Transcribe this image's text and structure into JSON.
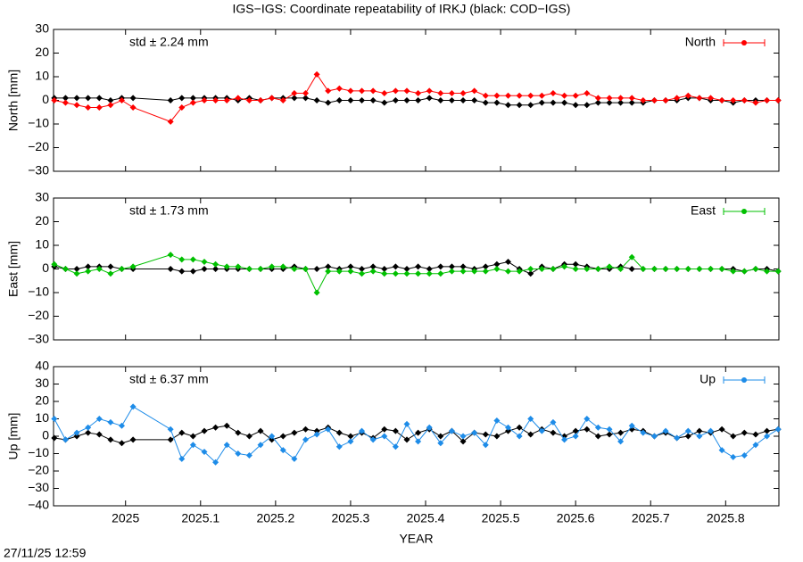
{
  "title": "IGS−IGS: Coordinate repeatability of IRKJ (black: COD−IGS)",
  "footer": "27/11/25 12:59",
  "chart_data": [
    {
      "type": "line",
      "ylabel": "North [mm]",
      "annotation": "std ± 2.24 mm",
      "annotation_color": "#ff0000",
      "xlim": [
        2024.904,
        2025.871
      ],
      "xticks": [
        2025,
        2025.1,
        2025.2,
        2025.3,
        2025.4,
        2025.5,
        2025.6,
        2025.7,
        2025.8
      ],
      "ylim": [
        -30,
        30
      ],
      "yticks": [
        30,
        20,
        10,
        0,
        {
          "value": -10,
          "label": "−10"
        },
        {
          "value": -20,
          "label": "−20"
        },
        {
          "value": -30,
          "label": "−30"
        }
      ],
      "x": [
        2024.905,
        2024.92,
        2024.935,
        2024.95,
        2024.965,
        2024.98,
        2024.995,
        2025.01,
        2025.06,
        2025.075,
        2025.09,
        2025.105,
        2025.12,
        2025.135,
        2025.15,
        2025.165,
        2025.18,
        2025.195,
        2025.21,
        2025.225,
        2025.24,
        2025.255,
        2025.27,
        2025.285,
        2025.3,
        2025.315,
        2025.33,
        2025.345,
        2025.36,
        2025.375,
        2025.39,
        2025.405,
        2025.42,
        2025.435,
        2025.45,
        2025.465,
        2025.48,
        2025.495,
        2025.51,
        2025.525,
        2025.54,
        2025.555,
        2025.57,
        2025.585,
        2025.6,
        2025.615,
        2025.63,
        2025.645,
        2025.66,
        2025.675,
        2025.69,
        2025.705,
        2025.72,
        2025.735,
        2025.75,
        2025.765,
        2025.78,
        2025.795,
        2025.81,
        2025.825,
        2025.84,
        2025.855,
        2025.87
      ],
      "series": [
        {
          "color": "#000000",
          "values": [
            1,
            1,
            1,
            1,
            1,
            0,
            1,
            1,
            0,
            1,
            1,
            1,
            1,
            1,
            0,
            1,
            0,
            1,
            1,
            1,
            1,
            0,
            -1,
            0,
            0,
            0,
            0,
            -1,
            0,
            0,
            0,
            1,
            0,
            0,
            0,
            0,
            -1,
            -1,
            -2,
            -2,
            -2,
            -1,
            -1,
            -1,
            -2,
            -2,
            -1,
            -1,
            -1,
            -1,
            -1,
            0,
            0,
            0,
            1,
            1,
            0,
            0,
            -1,
            0,
            0,
            0,
            0
          ]
        },
        {
          "name": "North",
          "color": "#ff0000",
          "values": [
            0,
            -1,
            -2,
            -3,
            -3,
            -2,
            0,
            -3,
            -9,
            -3,
            -1,
            0,
            0,
            0,
            1,
            0,
            0,
            1,
            0,
            3,
            3,
            11,
            4,
            5,
            4,
            4,
            4,
            3,
            4,
            4,
            3,
            4,
            3,
            3,
            3,
            4,
            2,
            2,
            2,
            2,
            2,
            2,
            3,
            2,
            2,
            3,
            1,
            1,
            1,
            1,
            0,
            0,
            0,
            1,
            2,
            1,
            1,
            0,
            0,
            0,
            -1,
            0,
            0
          ]
        }
      ]
    },
    {
      "type": "line",
      "ylabel": "East [mm]",
      "annotation": "std ± 1.73 mm",
      "annotation_color": "#00c000",
      "xlim": [
        2024.904,
        2025.871
      ],
      "xticks": [
        2025,
        2025.1,
        2025.2,
        2025.3,
        2025.4,
        2025.5,
        2025.6,
        2025.7,
        2025.8
      ],
      "ylim": [
        -30,
        30
      ],
      "yticks": [
        30,
        20,
        10,
        0,
        {
          "value": -10,
          "label": "−10"
        },
        {
          "value": -20,
          "label": "−20"
        },
        {
          "value": -30,
          "label": "−30"
        }
      ],
      "x": [
        2024.905,
        2024.92,
        2024.935,
        2024.95,
        2024.965,
        2024.98,
        2024.995,
        2025.01,
        2025.06,
        2025.075,
        2025.09,
        2025.105,
        2025.12,
        2025.135,
        2025.15,
        2025.165,
        2025.18,
        2025.195,
        2025.21,
        2025.225,
        2025.24,
        2025.255,
        2025.27,
        2025.285,
        2025.3,
        2025.315,
        2025.33,
        2025.345,
        2025.36,
        2025.375,
        2025.39,
        2025.405,
        2025.42,
        2025.435,
        2025.45,
        2025.465,
        2025.48,
        2025.495,
        2025.51,
        2025.525,
        2025.54,
        2025.555,
        2025.57,
        2025.585,
        2025.6,
        2025.615,
        2025.63,
        2025.645,
        2025.66,
        2025.675,
        2025.69,
        2025.705,
        2025.72,
        2025.735,
        2025.75,
        2025.765,
        2025.78,
        2025.795,
        2025.81,
        2025.825,
        2025.84,
        2025.855,
        2025.87
      ],
      "series": [
        {
          "color": "#000000",
          "values": [
            1,
            0,
            0,
            1,
            1,
            1,
            0,
            0,
            0,
            -1,
            -1,
            0,
            0,
            0,
            0,
            0,
            0,
            0,
            0,
            1,
            0,
            0,
            1,
            0,
            1,
            0,
            1,
            0,
            1,
            0,
            1,
            0,
            1,
            1,
            1,
            0,
            1,
            2,
            3,
            0,
            -2,
            1,
            0,
            2,
            2,
            1,
            0,
            0,
            1,
            0,
            0,
            0,
            0,
            0,
            0,
            0,
            0,
            0,
            0,
            -1,
            0,
            0,
            -1
          ]
        },
        {
          "name": "East",
          "color": "#00c000",
          "values": [
            2,
            0,
            -2,
            -1,
            0,
            -2,
            0,
            1,
            6,
            4,
            4,
            3,
            2,
            1,
            1,
            0,
            0,
            1,
            1,
            0,
            0,
            -10,
            -1,
            -1,
            -1,
            -2,
            -1,
            -2,
            -2,
            -2,
            -2,
            -2,
            -2,
            -1,
            -1,
            -1,
            -1,
            0,
            -1,
            -1,
            0,
            0,
            0,
            1,
            0,
            0,
            0,
            1,
            0,
            5,
            0,
            0,
            0,
            0,
            0,
            0,
            0,
            0,
            -1,
            -1,
            0,
            -1,
            -1
          ]
        }
      ]
    },
    {
      "type": "line",
      "ylabel": "Up [mm]",
      "annotation": "std ± 6.37 mm",
      "annotation_color": "#1e8ce8",
      "xlabel": "YEAR",
      "xlim": [
        2024.904,
        2025.871
      ],
      "xticks": [
        2025,
        2025.1,
        2025.2,
        2025.3,
        2025.4,
        2025.5,
        2025.6,
        2025.7,
        2025.8
      ],
      "ylim": [
        -40,
        40
      ],
      "yticks": [
        40,
        30,
        20,
        10,
        0,
        {
          "value": -10,
          "label": "−10"
        },
        {
          "value": -20,
          "label": "−20"
        },
        {
          "value": -30,
          "label": "−30"
        },
        {
          "value": -40,
          "label": "−40"
        }
      ],
      "x": [
        2024.905,
        2024.92,
        2024.935,
        2024.95,
        2024.965,
        2024.98,
        2024.995,
        2025.01,
        2025.06,
        2025.075,
        2025.09,
        2025.105,
        2025.12,
        2025.135,
        2025.15,
        2025.165,
        2025.18,
        2025.195,
        2025.21,
        2025.225,
        2025.24,
        2025.255,
        2025.27,
        2025.285,
        2025.3,
        2025.315,
        2025.33,
        2025.345,
        2025.36,
        2025.375,
        2025.39,
        2025.405,
        2025.42,
        2025.435,
        2025.45,
        2025.465,
        2025.48,
        2025.495,
        2025.51,
        2025.525,
        2025.54,
        2025.555,
        2025.57,
        2025.585,
        2025.6,
        2025.615,
        2025.63,
        2025.645,
        2025.66,
        2025.675,
        2025.69,
        2025.705,
        2025.72,
        2025.735,
        2025.75,
        2025.765,
        2025.78,
        2025.795,
        2025.81,
        2025.825,
        2025.84,
        2025.855,
        2025.87
      ],
      "series": [
        {
          "color": "#000000",
          "values": [
            -1,
            -2,
            0,
            2,
            1,
            -2,
            -4,
            -2,
            -2,
            2,
            0,
            3,
            5,
            6,
            2,
            0,
            3,
            -2,
            0,
            2,
            4,
            3,
            5,
            2,
            0,
            2,
            -1,
            4,
            3,
            -2,
            2,
            4,
            0,
            3,
            -3,
            2,
            1,
            0,
            3,
            5,
            1,
            4,
            2,
            0,
            3,
            4,
            0,
            1,
            2,
            4,
            3,
            0,
            2,
            -1,
            0,
            3,
            2,
            4,
            0,
            2,
            1,
            3,
            4
          ]
        },
        {
          "name": "Up",
          "color": "#1e8ce8",
          "values": [
            10,
            -2,
            2,
            5,
            10,
            8,
            6,
            17,
            4,
            -13,
            -5,
            -9,
            -15,
            -5,
            -10,
            -11,
            -5,
            0,
            -8,
            -13,
            -2,
            1,
            4,
            -6,
            -3,
            3,
            -2,
            0,
            -6,
            7,
            -3,
            5,
            -4,
            3,
            0,
            2,
            -5,
            9,
            5,
            0,
            10,
            3,
            8,
            -2,
            0,
            10,
            5,
            4,
            -3,
            6,
            2,
            0,
            3,
            -1,
            3,
            0,
            3,
            -8,
            -12,
            -11,
            -5,
            0,
            4
          ]
        }
      ]
    }
  ]
}
